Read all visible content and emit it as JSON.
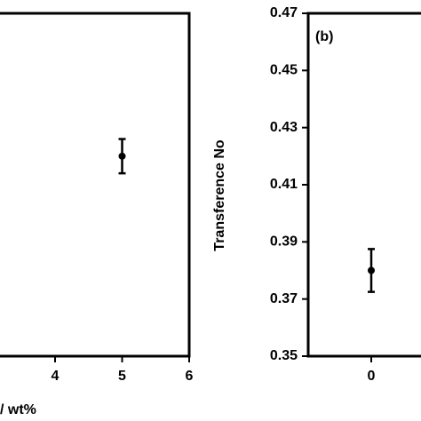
{
  "chart_data": [
    {
      "type": "scatter",
      "x_label": "/ wt%",
      "x": [
        5
      ],
      "values": [
        0.42
      ],
      "errors": [
        0.006
      ],
      "xlim": [
        0,
        6
      ],
      "xticks": [
        4,
        5,
        6
      ],
      "ylim": [
        0.35,
        0.47
      ],
      "color": "#000000"
    },
    {
      "type": "scatter",
      "panel_label": "(b)",
      "y_label": "Transference No",
      "x": [
        0
      ],
      "values": [
        0.38
      ],
      "errors": [
        0.0075
      ],
      "xlim": [
        -1,
        1
      ],
      "xticks": [
        0
      ],
      "ylim": [
        0.35,
        0.47
      ],
      "yticks": [
        0.35,
        0.37,
        0.39,
        0.41,
        0.43,
        0.45,
        0.47
      ],
      "color": "#000000"
    }
  ]
}
